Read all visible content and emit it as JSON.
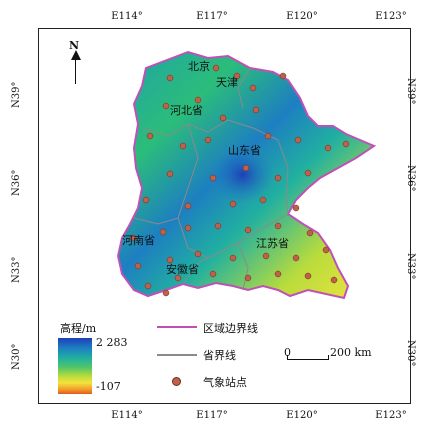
{
  "axes": {
    "lon_ticks": [
      "E114°",
      "E117°",
      "E120°",
      "E123°"
    ],
    "lat_ticks": [
      "N39°",
      "N36°",
      "N33°",
      "N30°"
    ]
  },
  "north_label": "N",
  "provinces": [
    "北京",
    "天津",
    "河北省",
    "山东省",
    "河南省",
    "安徽省",
    "江苏省"
  ],
  "legend": {
    "elevation_title": "高程/m",
    "elevation_max": "2 283",
    "elevation_min": "-107",
    "boundary_region": "区域边界线",
    "boundary_province": "省界线",
    "stations": "气象站点",
    "scale_zero": "0",
    "scale_distance": "200 km"
  },
  "colors": {
    "region_boundary": "#c050b8",
    "province_boundary": "#8a8a8a",
    "station": "#c0604a"
  },
  "elevation_range_m": [
    -107,
    2283
  ]
}
